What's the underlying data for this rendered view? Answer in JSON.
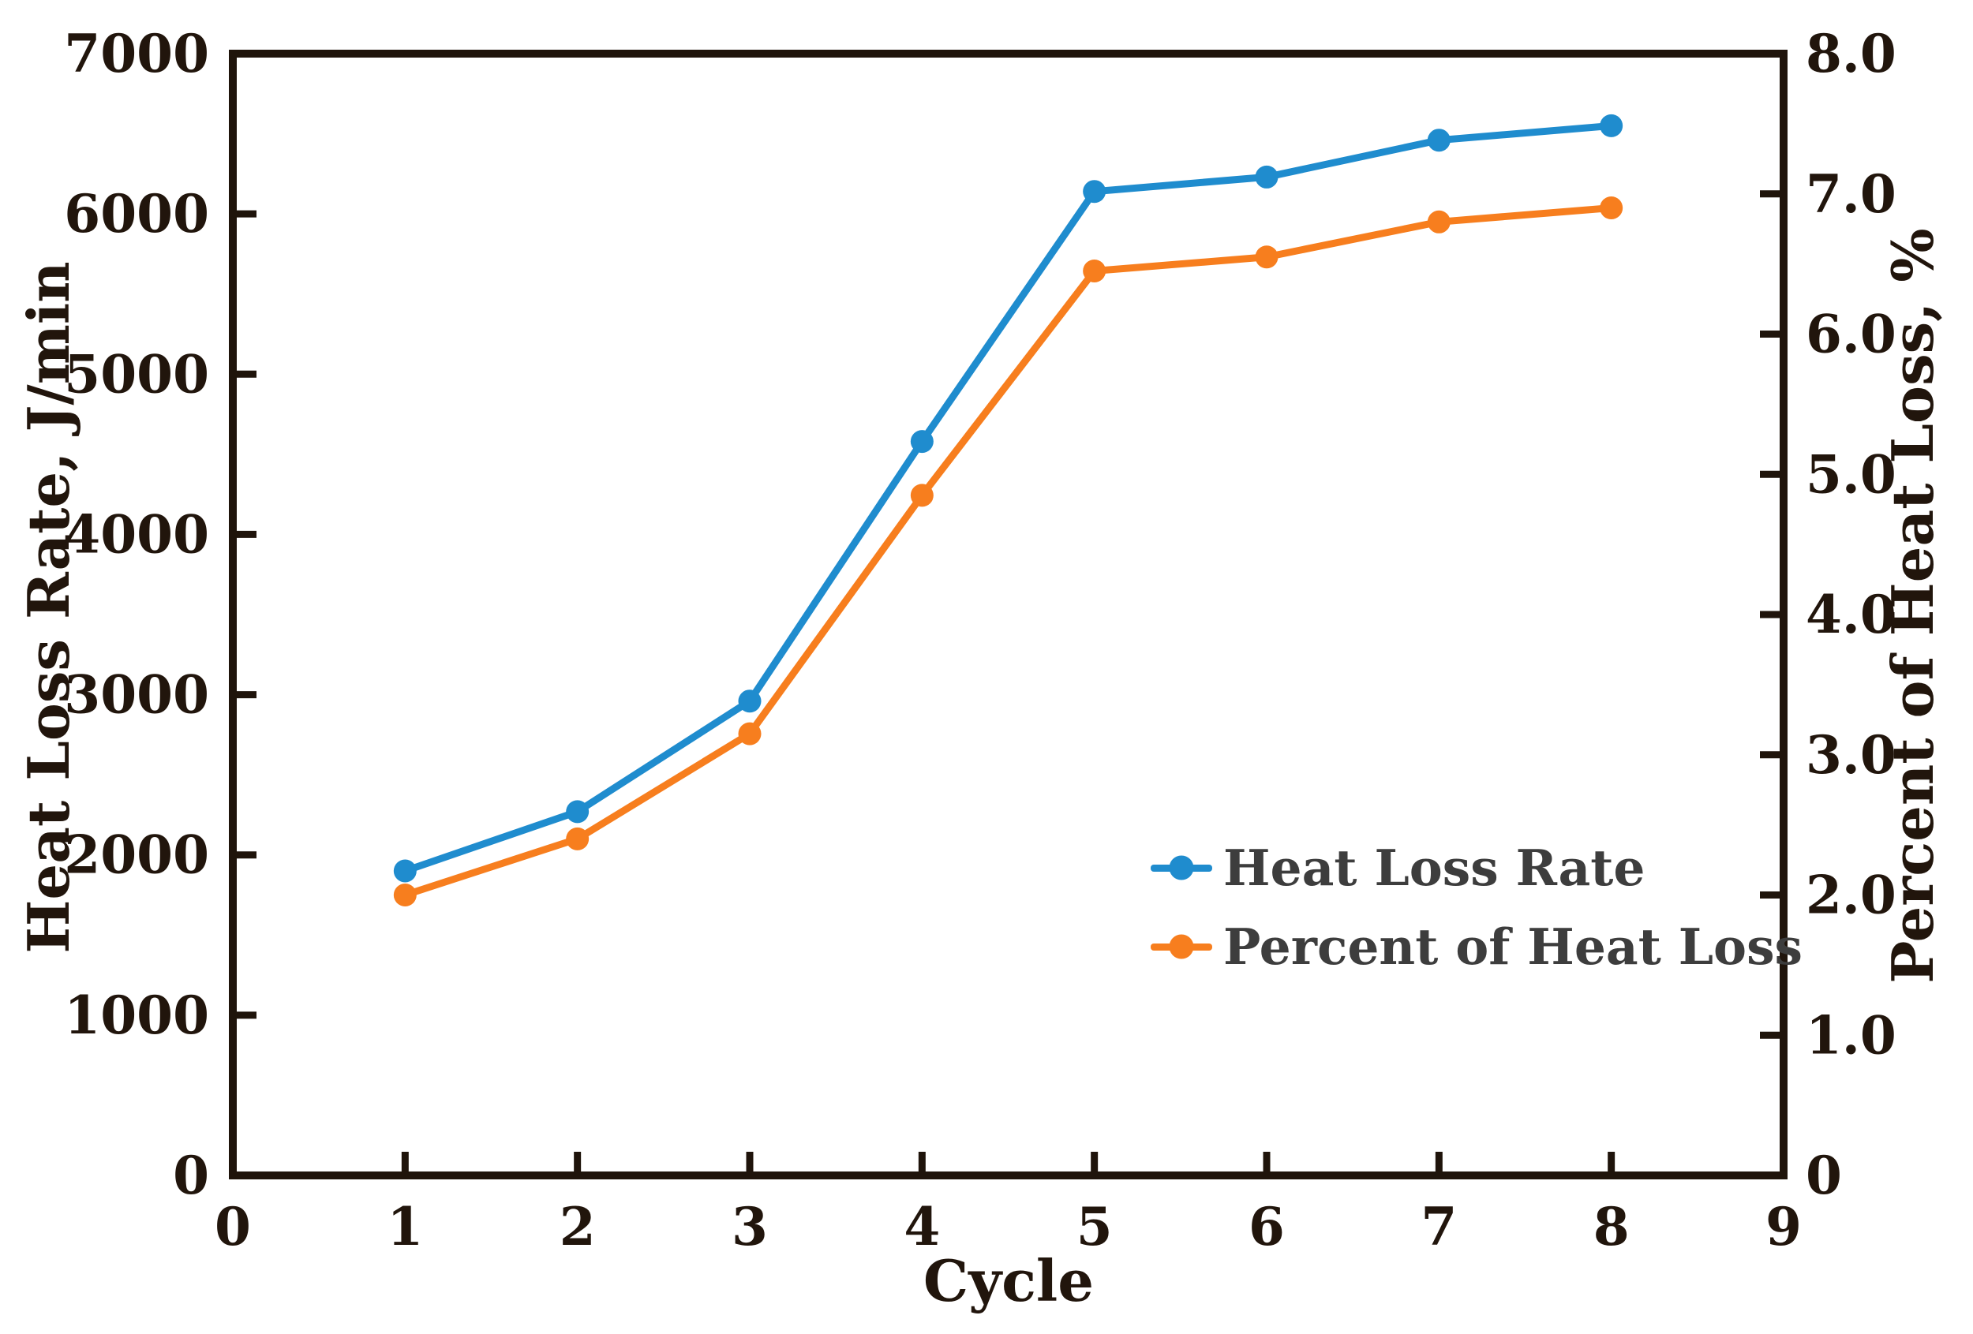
{
  "styles": {
    "axis_color": "#1F140B",
    "tick_text_color": "#21150C",
    "legend_text_color": "#3D3D3D",
    "background": "#ffffff"
  },
  "chart_data": {
    "type": "line",
    "title": "",
    "xlabel": "Cycle",
    "ylabel_left": "Heat Loss Rate, J/min",
    "ylabel_right": "Percent of Heat Loss, %",
    "xlim": [
      0,
      9
    ],
    "ylim_left": [
      0,
      7000
    ],
    "ylim_right": [
      0,
      8
    ],
    "grid": false,
    "legend_position": "inside-right",
    "x": [
      1,
      2,
      3,
      4,
      5,
      6,
      7,
      8
    ],
    "series": [
      {
        "name": "Heat Loss Rate",
        "axis": "left",
        "color": "#1F8CCE",
        "marker": "circle",
        "values": [
          1900,
          2270,
          2960,
          4580,
          6140,
          6230,
          6460,
          6550
        ]
      },
      {
        "name": "Percent of Heat Loss",
        "axis": "right",
        "color": "#F77E1E",
        "marker": "circle",
        "values": [
          2.0,
          2.4,
          3.15,
          4.85,
          6.45,
          6.55,
          6.8,
          6.9
        ]
      }
    ],
    "x_ticks": {
      "values": [
        0,
        1,
        2,
        3,
        4,
        5,
        6,
        7,
        8,
        9
      ],
      "labels": [
        "0",
        "1",
        "2",
        "3",
        "4",
        "5",
        "6",
        "7",
        "8",
        "9"
      ]
    },
    "left_ticks": {
      "values": [
        0,
        1000,
        2000,
        3000,
        4000,
        5000,
        6000,
        7000
      ],
      "labels": [
        "0",
        "1000",
        "2000",
        "3000",
        "4000",
        "5000",
        "6000",
        "7000"
      ]
    },
    "right_ticks": {
      "values": [
        0,
        1,
        2,
        3,
        4,
        5,
        6,
        7,
        8
      ],
      "labels": [
        "0",
        "1.0",
        "2.0",
        "3.0",
        "4.0",
        "5.0",
        "6.0",
        "7.0",
        "8.0"
      ]
    }
  }
}
